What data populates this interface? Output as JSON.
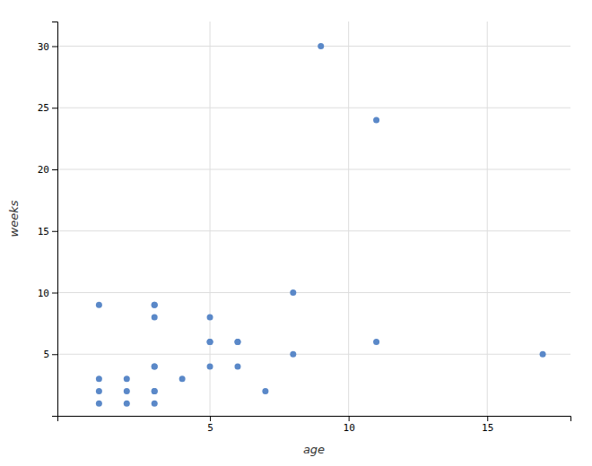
{
  "chart_data": {
    "type": "scatter",
    "x": [
      1,
      1,
      1,
      1,
      2,
      2,
      2,
      3,
      3,
      3,
      3,
      3,
      3,
      3,
      3,
      4,
      5,
      5,
      5,
      5,
      6,
      6,
      6,
      7,
      8,
      8,
      9,
      11,
      11,
      17
    ],
    "y": [
      9,
      3,
      2,
      1,
      3,
      2,
      1,
      9,
      9,
      8,
      4,
      4,
      2,
      2,
      1,
      3,
      8,
      6,
      6,
      4,
      6,
      6,
      4,
      2,
      5,
      10,
      30,
      24,
      6,
      5
    ],
    "xlabel": "age",
    "ylabel": "weeks",
    "xlim": [
      -0.5,
      18
    ],
    "ylim": [
      0,
      32
    ],
    "xticks": [
      5,
      10,
      15
    ],
    "yticks": [
      5,
      10,
      15,
      20,
      25,
      30
    ],
    "color": "#5a88c8",
    "grid": true
  }
}
